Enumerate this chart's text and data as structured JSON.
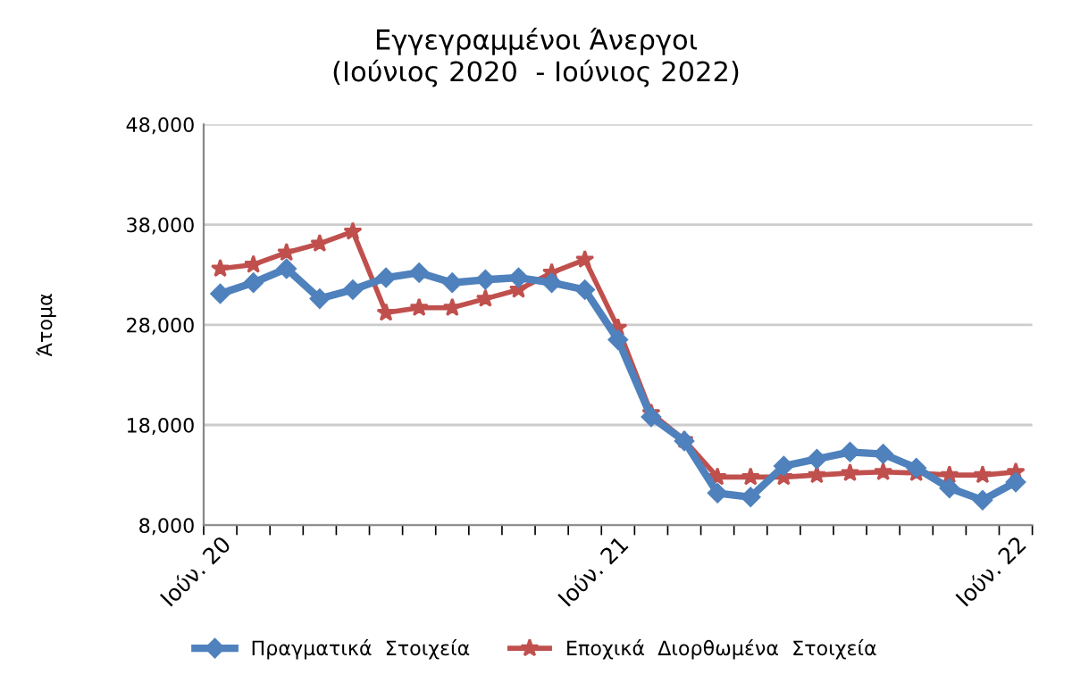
{
  "chart_data": {
    "type": "line",
    "title": "Εγγεγραμμένοι Άνεργοι\n(Ιούνιος 2020  - Ιούνιος 2022)",
    "ylabel": "Άτομα",
    "categories": [
      "Ιούν. 20",
      null,
      null,
      null,
      null,
      null,
      null,
      null,
      null,
      null,
      null,
      null,
      "Ιούν. 21",
      null,
      null,
      null,
      null,
      null,
      null,
      null,
      null,
      null,
      null,
      null,
      "Ιούν. 22"
    ],
    "series": [
      {
        "name": "Πραγματικά  Στοιχεία",
        "color": "#4f81bd",
        "marker": "diamond",
        "values": [
          31100,
          32200,
          33600,
          30600,
          31500,
          32700,
          33200,
          32200,
          32500,
          32700,
          32200,
          31500,
          26500,
          18800,
          16400,
          11200,
          10800,
          13900,
          14600,
          15300,
          15100,
          13700,
          11700,
          10500,
          12300
        ]
      },
      {
        "name": "Εποχικά  Διορθωμένα  Στοιχεία",
        "color": "#c0504d",
        "marker": "star",
        "values": [
          33600,
          34000,
          35200,
          36100,
          37300,
          29200,
          29700,
          29700,
          30600,
          31500,
          33200,
          34500,
          27700,
          19200,
          16500,
          12800,
          12800,
          12800,
          13000,
          13200,
          13300,
          13200,
          13000,
          13000,
          13300
        ]
      }
    ],
    "ylim": [
      8000,
      48000
    ],
    "yticks": [
      {
        "value": 8000,
        "label": "8,000"
      },
      {
        "value": 18000,
        "label": "18,000"
      },
      {
        "value": 28000,
        "label": "28,000"
      },
      {
        "value": 38000,
        "label": "38,000"
      },
      {
        "value": 48000,
        "label": "48,000"
      }
    ],
    "grid": "y",
    "legend": "bottom",
    "line_style": "solid"
  }
}
